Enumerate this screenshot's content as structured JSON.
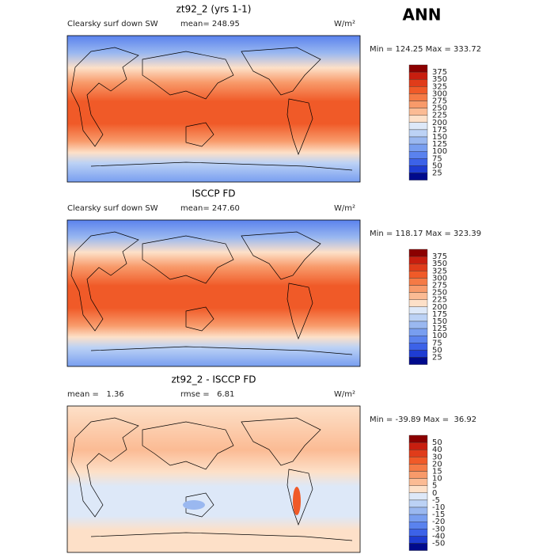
{
  "title": "ANN",
  "colorbar_colors": [
    "#8b0000",
    "#c81e0f",
    "#e03c1a",
    "#f05a28",
    "#f57a45",
    "#f89a6a",
    "#fbbb94",
    "#fde0c8",
    "#dde8f8",
    "#bcd2f5",
    "#9ab8f0",
    "#789ef0",
    "#5a82ee",
    "#3c62e8",
    "#1e3cd2",
    "#000a8c"
  ],
  "panels": [
    {
      "title": "zt92_2 (yrs 1-1)",
      "left_label": "Clearsky surf down SW",
      "stat": "mean= 248.95",
      "units": "W/m²",
      "range": "Min = 124.25 Max = 333.72",
      "levels": [
        375,
        350,
        325,
        300,
        275,
        250,
        225,
        200,
        175,
        150,
        125,
        100,
        75,
        50,
        25
      ]
    },
    {
      "title": "ISCCP FD",
      "left_label": "Clearsky surf down SW",
      "stat": "mean= 247.60",
      "units": "W/m²",
      "range": "Min = 118.17 Max = 323.39",
      "levels": [
        375,
        350,
        325,
        300,
        275,
        250,
        225,
        200,
        175,
        150,
        125,
        100,
        75,
        50,
        25
      ]
    },
    {
      "title": "zt92_2 - ISCCP FD",
      "left_label": "mean =   1.36",
      "stat": "rmse =   6.81",
      "units": "W/m²",
      "range": "Min = -39.89 Max =  36.92",
      "levels": [
        50,
        40,
        30,
        20,
        15,
        10,
        5,
        0,
        -5,
        -10,
        -15,
        -20,
        -30,
        -40,
        -50
      ]
    }
  ]
}
